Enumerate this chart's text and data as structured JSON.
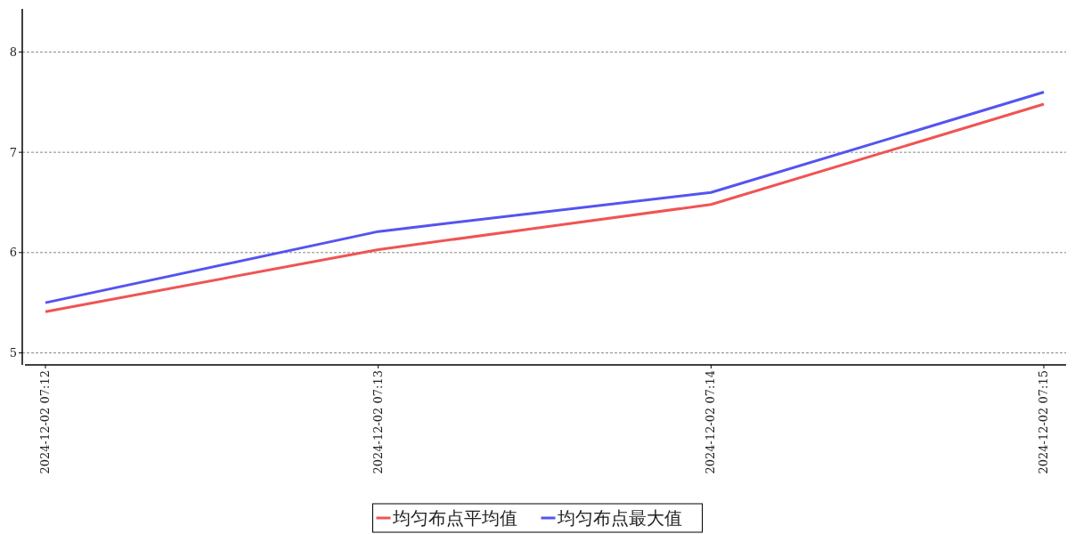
{
  "chart_data": {
    "type": "line",
    "categories": [
      "2024-12-02 07:12",
      "2024-12-02 07:13",
      "2024-12-02 07:14",
      "2024-12-02 07:15"
    ],
    "series": [
      {
        "name": "均匀布点平均值",
        "color": "#f05454",
        "values": [
          5.41,
          6.03,
          6.48,
          7.48
        ]
      },
      {
        "name": "均匀布点最大值",
        "color": "#5454f0",
        "values": [
          5.5,
          6.21,
          6.6,
          7.6
        ]
      }
    ],
    "ylim": [
      4.88,
      8.43
    ],
    "yticks": [
      5,
      6,
      7,
      8
    ],
    "grid": "y",
    "legend": "bottom",
    "marker": "none",
    "line_style": "solid"
  }
}
